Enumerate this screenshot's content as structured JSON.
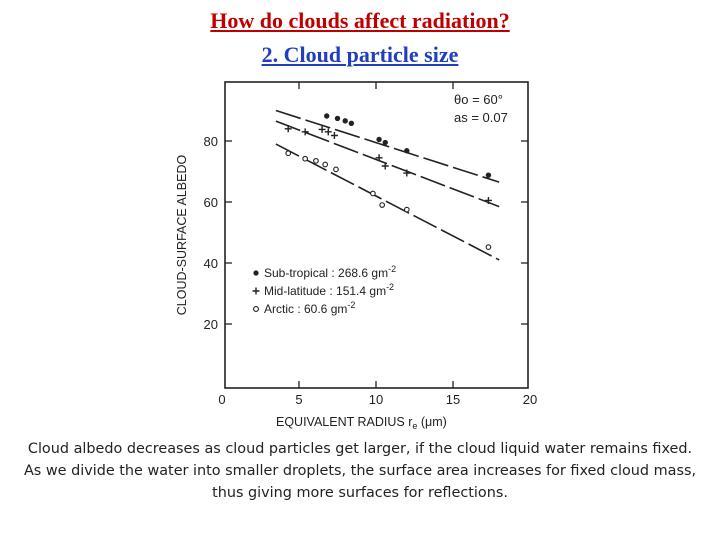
{
  "slide": {
    "title_line1": "How do clouds affect radiation?",
    "title_line2": "2. Cloud particle size",
    "caption_line1": "Cloud albedo decreases as cloud particles get larger, if the cloud liquid water remains fixed.",
    "caption_line2": "As we divide the water into smaller droplets, the surface area increases for fixed cloud mass,",
    "caption_line3": "thus giving more surfaces for reflections."
  },
  "colors": {
    "title_red": "#c00000",
    "title_blue": "#1f3fbf",
    "ink": "#222222"
  },
  "chart_data": {
    "type": "scatter",
    "xlabel": "EQUIVALENT RADIUS r",
    "xlabel_sub": "e",
    "xlabel_unit": "(μm)",
    "ylabel": "CLOUD-SURFACE ALBEDO",
    "xlim": [
      0,
      20
    ],
    "ylim": [
      0,
      100
    ],
    "xticks": [
      0,
      5,
      10,
      15,
      20
    ],
    "yticks": [
      20,
      40,
      60,
      80
    ],
    "grid": false,
    "annotations": [
      "θo = 60°",
      "as = 0.07"
    ],
    "legend_position": "lower-left",
    "series": [
      {
        "name": "Sub-tropical : 268.6 gm",
        "name_sup": "-2",
        "marker": "dot",
        "points": [
          [
            6.8,
            88.2
          ],
          [
            7.5,
            87.4
          ],
          [
            8.0,
            86.6
          ],
          [
            8.4,
            85.8
          ],
          [
            10.2,
            80.5
          ],
          [
            10.6,
            79.5
          ],
          [
            12.0,
            76.8
          ],
          [
            17.3,
            68.8
          ]
        ],
        "fit": [
          [
            3.5,
            90.0
          ],
          [
            18.0,
            66.5
          ]
        ]
      },
      {
        "name": "Mid-latitude : 151.4 gm",
        "name_sup": "-2",
        "marker": "plus",
        "points": [
          [
            4.3,
            84.0
          ],
          [
            5.4,
            83.0
          ],
          [
            6.5,
            83.8
          ],
          [
            6.9,
            83.0
          ],
          [
            7.3,
            81.8
          ],
          [
            10.2,
            74.5
          ],
          [
            10.6,
            71.8
          ],
          [
            12.0,
            69.5
          ],
          [
            17.3,
            60.5
          ]
        ],
        "fit": [
          [
            3.5,
            86.5
          ],
          [
            18.0,
            58.5
          ]
        ]
      },
      {
        "name": "Arctic : 60.6 gm",
        "name_sup": "-2",
        "marker": "circle",
        "points": [
          [
            4.3,
            76.0
          ],
          [
            5.4,
            74.2
          ],
          [
            6.1,
            73.5
          ],
          [
            6.7,
            72.3
          ],
          [
            7.4,
            70.7
          ],
          [
            9.8,
            62.8
          ],
          [
            10.4,
            59.0
          ],
          [
            12.0,
            57.5
          ],
          [
            17.3,
            45.2
          ]
        ],
        "fit": [
          [
            3.5,
            79.0
          ],
          [
            18.0,
            41.0
          ]
        ]
      }
    ]
  }
}
